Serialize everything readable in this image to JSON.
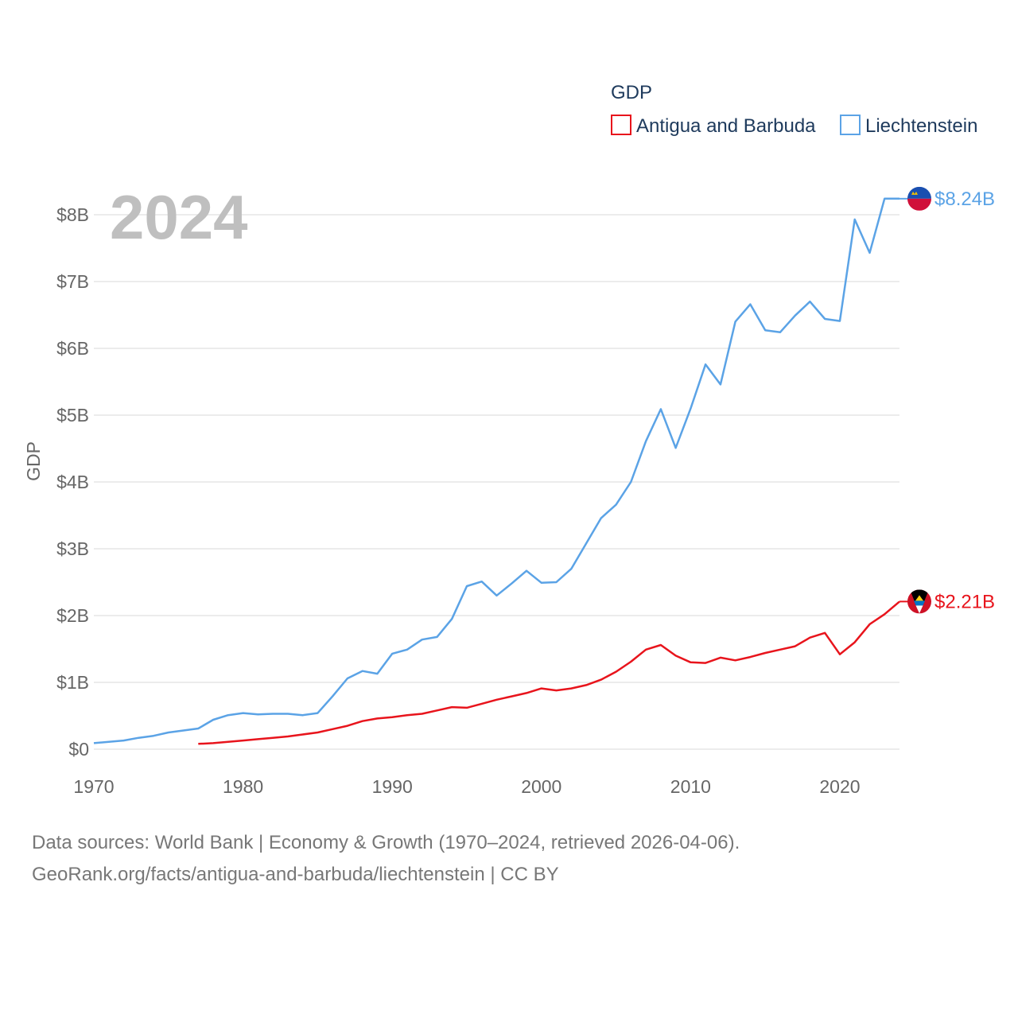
{
  "chart_data": {
    "type": "line",
    "title": "GDP",
    "ylabel": "GDP",
    "xlabel": "",
    "year_label": "2024",
    "xlim": [
      1970,
      2024
    ],
    "ylim": [
      0,
      8.5
    ],
    "x_ticks": [
      {
        "value": 1970,
        "label": "1970"
      },
      {
        "value": 1980,
        "label": "1980"
      },
      {
        "value": 1990,
        "label": "1990"
      },
      {
        "value": 2000,
        "label": "2000"
      },
      {
        "value": 2010,
        "label": "2010"
      },
      {
        "value": 2020,
        "label": "2020"
      }
    ],
    "y_ticks": [
      {
        "value": 0,
        "label": "$0"
      },
      {
        "value": 1,
        "label": "$1B"
      },
      {
        "value": 2,
        "label": "$2B"
      },
      {
        "value": 3,
        "label": "$3B"
      },
      {
        "value": 4,
        "label": "$4B"
      },
      {
        "value": 5,
        "label": "$5B"
      },
      {
        "value": 6,
        "label": "$6B"
      },
      {
        "value": 7,
        "label": "$7B"
      },
      {
        "value": 8,
        "label": "$8B"
      }
    ],
    "legend_position": "top-right",
    "units": "billion USD",
    "series": [
      {
        "name": "Antigua and Barbuda",
        "color": "#e8141c",
        "end_label": "$2.21B",
        "flag": "antigua-and-barbuda-flag",
        "x": [
          1977,
          1978,
          1979,
          1980,
          1981,
          1982,
          1983,
          1984,
          1985,
          1986,
          1987,
          1988,
          1989,
          1990,
          1991,
          1992,
          1993,
          1994,
          1995,
          1996,
          1997,
          1998,
          1999,
          2000,
          2001,
          2002,
          2003,
          2004,
          2005,
          2006,
          2007,
          2008,
          2009,
          2010,
          2011,
          2012,
          2013,
          2014,
          2015,
          2016,
          2017,
          2018,
          2019,
          2020,
          2021,
          2022,
          2023,
          2024
        ],
        "values": [
          0.08,
          0.09,
          0.11,
          0.13,
          0.15,
          0.17,
          0.19,
          0.22,
          0.25,
          0.3,
          0.35,
          0.42,
          0.46,
          0.48,
          0.51,
          0.53,
          0.58,
          0.63,
          0.62,
          0.68,
          0.74,
          0.79,
          0.84,
          0.91,
          0.88,
          0.91,
          0.96,
          1.04,
          1.16,
          1.31,
          1.49,
          1.56,
          1.4,
          1.3,
          1.29,
          1.37,
          1.33,
          1.38,
          1.44,
          1.49,
          1.54,
          1.67,
          1.74,
          1.42,
          1.6,
          1.87,
          2.02,
          2.21
        ]
      },
      {
        "name": "Liechtenstein",
        "color": "#5ba3e6",
        "end_label": "$8.24B",
        "flag": "liechtenstein-flag",
        "x": [
          1970,
          1971,
          1972,
          1973,
          1974,
          1975,
          1976,
          1977,
          1978,
          1979,
          1980,
          1981,
          1982,
          1983,
          1984,
          1985,
          1986,
          1987,
          1988,
          1989,
          1990,
          1991,
          1992,
          1993,
          1994,
          1995,
          1996,
          1997,
          1998,
          1999,
          2000,
          2001,
          2002,
          2003,
          2004,
          2005,
          2006,
          2007,
          2008,
          2009,
          2010,
          2011,
          2012,
          2013,
          2014,
          2015,
          2016,
          2017,
          2018,
          2019,
          2020,
          2021,
          2022,
          2023,
          2024
        ],
        "values": [
          0.09,
          0.11,
          0.13,
          0.17,
          0.2,
          0.25,
          0.28,
          0.31,
          0.44,
          0.51,
          0.54,
          0.52,
          0.53,
          0.53,
          0.51,
          0.54,
          0.79,
          1.06,
          1.17,
          1.13,
          1.43,
          1.49,
          1.64,
          1.68,
          1.95,
          2.44,
          2.51,
          2.3,
          2.48,
          2.67,
          2.49,
          2.5,
          2.7,
          3.08,
          3.46,
          3.66,
          4.0,
          4.61,
          5.09,
          4.51,
          5.1,
          5.76,
          5.46,
          6.4,
          6.66,
          6.27,
          6.24,
          6.49,
          6.7,
          6.44,
          6.41,
          7.93,
          7.43,
          8.24,
          8.24
        ]
      }
    ]
  },
  "footer": {
    "line1": "Data sources: World Bank | Economy & Growth (1970–2024, retrieved 2026-04-06).",
    "line2": "GeoRank.org/facts/antigua-and-barbuda/liechtenstein | CC BY"
  }
}
